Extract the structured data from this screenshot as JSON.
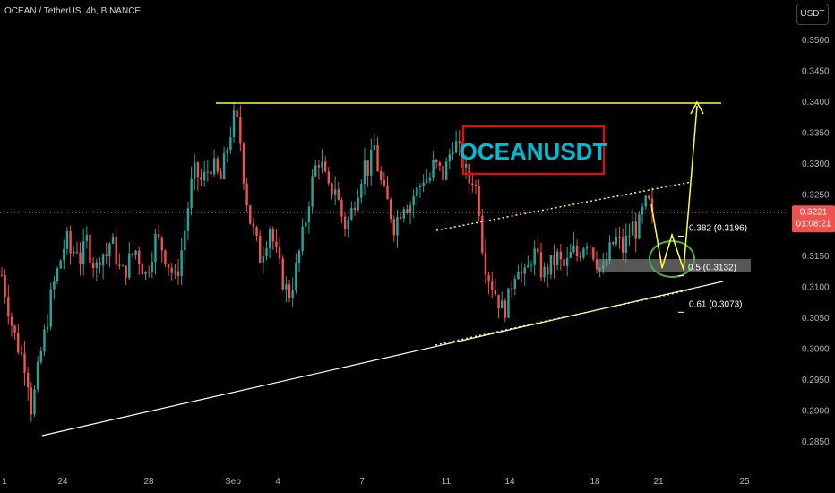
{
  "header": {
    "symbol": "OCEAN / TetherUS, 4h, BINANCE",
    "currency_button": "USDT"
  },
  "colors": {
    "bull": "#26a69a",
    "bear": "#ef5350",
    "price_label_bg": "#ef5350",
    "drawing_yellow": "#ffff3a",
    "trendline": "#ffffff",
    "ellipse": "#4caf50",
    "title_box_border": "#ff0000",
    "title_text": "#00bcd4"
  },
  "annotation": {
    "title": "OCEANUSDT"
  },
  "price_axis": {
    "ticks": [
      "0.3500",
      "0.3450",
      "0.3400",
      "0.3350",
      "0.3300",
      "0.3250",
      "0.3200",
      "0.3150",
      "0.3100",
      "0.3050",
      "0.3000",
      "0.2950",
      "0.2900",
      "0.2850"
    ],
    "current_price": "0.3221",
    "countdown": "01:08:21"
  },
  "time_axis": {
    "ticks": [
      "1",
      "24",
      "28",
      "Sep",
      "4",
      "7",
      "11",
      "14",
      "18",
      "21",
      "25"
    ]
  },
  "fib_levels": [
    {
      "label": "0.382 (0.3196)",
      "price": 0.3196
    },
    {
      "label": "0.5 (0.3132)",
      "price": 0.3132
    },
    {
      "label": "0.61 (0.3073)",
      "price": 0.3073
    }
  ],
  "chart_data": {
    "type": "candlestick",
    "symbol": "OCEAN / TetherUS",
    "interval": "4h",
    "exchange": "BINANCE",
    "ylim": [
      0.283,
      0.355
    ],
    "current_price": 0.3221,
    "resistance_level": 0.34,
    "key_points": [
      {
        "date": "Aug 22",
        "low": 0.2865
      },
      {
        "date": "Aug 30",
        "high": 0.34
      },
      {
        "date": "Sep 6",
        "high": 0.339
      },
      {
        "date": "Sep 10",
        "low": 0.3005
      },
      {
        "date": "Sep 18",
        "low": 0.307
      },
      {
        "date": "Sep 20",
        "high": 0.325
      },
      {
        "date": "Sep 21",
        "close": 0.3221
      }
    ],
    "price_path": [
      0.312,
      0.308,
      0.304,
      0.301,
      0.299,
      0.297,
      0.29,
      0.295,
      0.3,
      0.304,
      0.309,
      0.312,
      0.315,
      0.318,
      0.315,
      0.317,
      0.314,
      0.318,
      0.315,
      0.313,
      0.316,
      0.315,
      0.318,
      0.315,
      0.312,
      0.313,
      0.315,
      0.316,
      0.314,
      0.312,
      0.315,
      0.318,
      0.317,
      0.315,
      0.313,
      0.311,
      0.315,
      0.32,
      0.326,
      0.329,
      0.327,
      0.328,
      0.33,
      0.329,
      0.327,
      0.331,
      0.335,
      0.338,
      0.334,
      0.326,
      0.321,
      0.318,
      0.315,
      0.317,
      0.32,
      0.316,
      0.313,
      0.31,
      0.309,
      0.312,
      0.316,
      0.32,
      0.325,
      0.329,
      0.331,
      0.328,
      0.325,
      0.327,
      0.323,
      0.32,
      0.321,
      0.324,
      0.327,
      0.33,
      0.329,
      0.333,
      0.328,
      0.325,
      0.323,
      0.32,
      0.322,
      0.324,
      0.323,
      0.325,
      0.326,
      0.328,
      0.327,
      0.33,
      0.329,
      0.328,
      0.331,
      0.334,
      0.332,
      0.33,
      0.327,
      0.328,
      0.324,
      0.315,
      0.312,
      0.31,
      0.308,
      0.306,
      0.308,
      0.312,
      0.314,
      0.311,
      0.313,
      0.316,
      0.314,
      0.312,
      0.313,
      0.314,
      0.315,
      0.313,
      0.314,
      0.316,
      0.315,
      0.317,
      0.318,
      0.316,
      0.314,
      0.312,
      0.315,
      0.317,
      0.318,
      0.316,
      0.318,
      0.32,
      0.319,
      0.322,
      0.324,
      0.3221
    ]
  }
}
